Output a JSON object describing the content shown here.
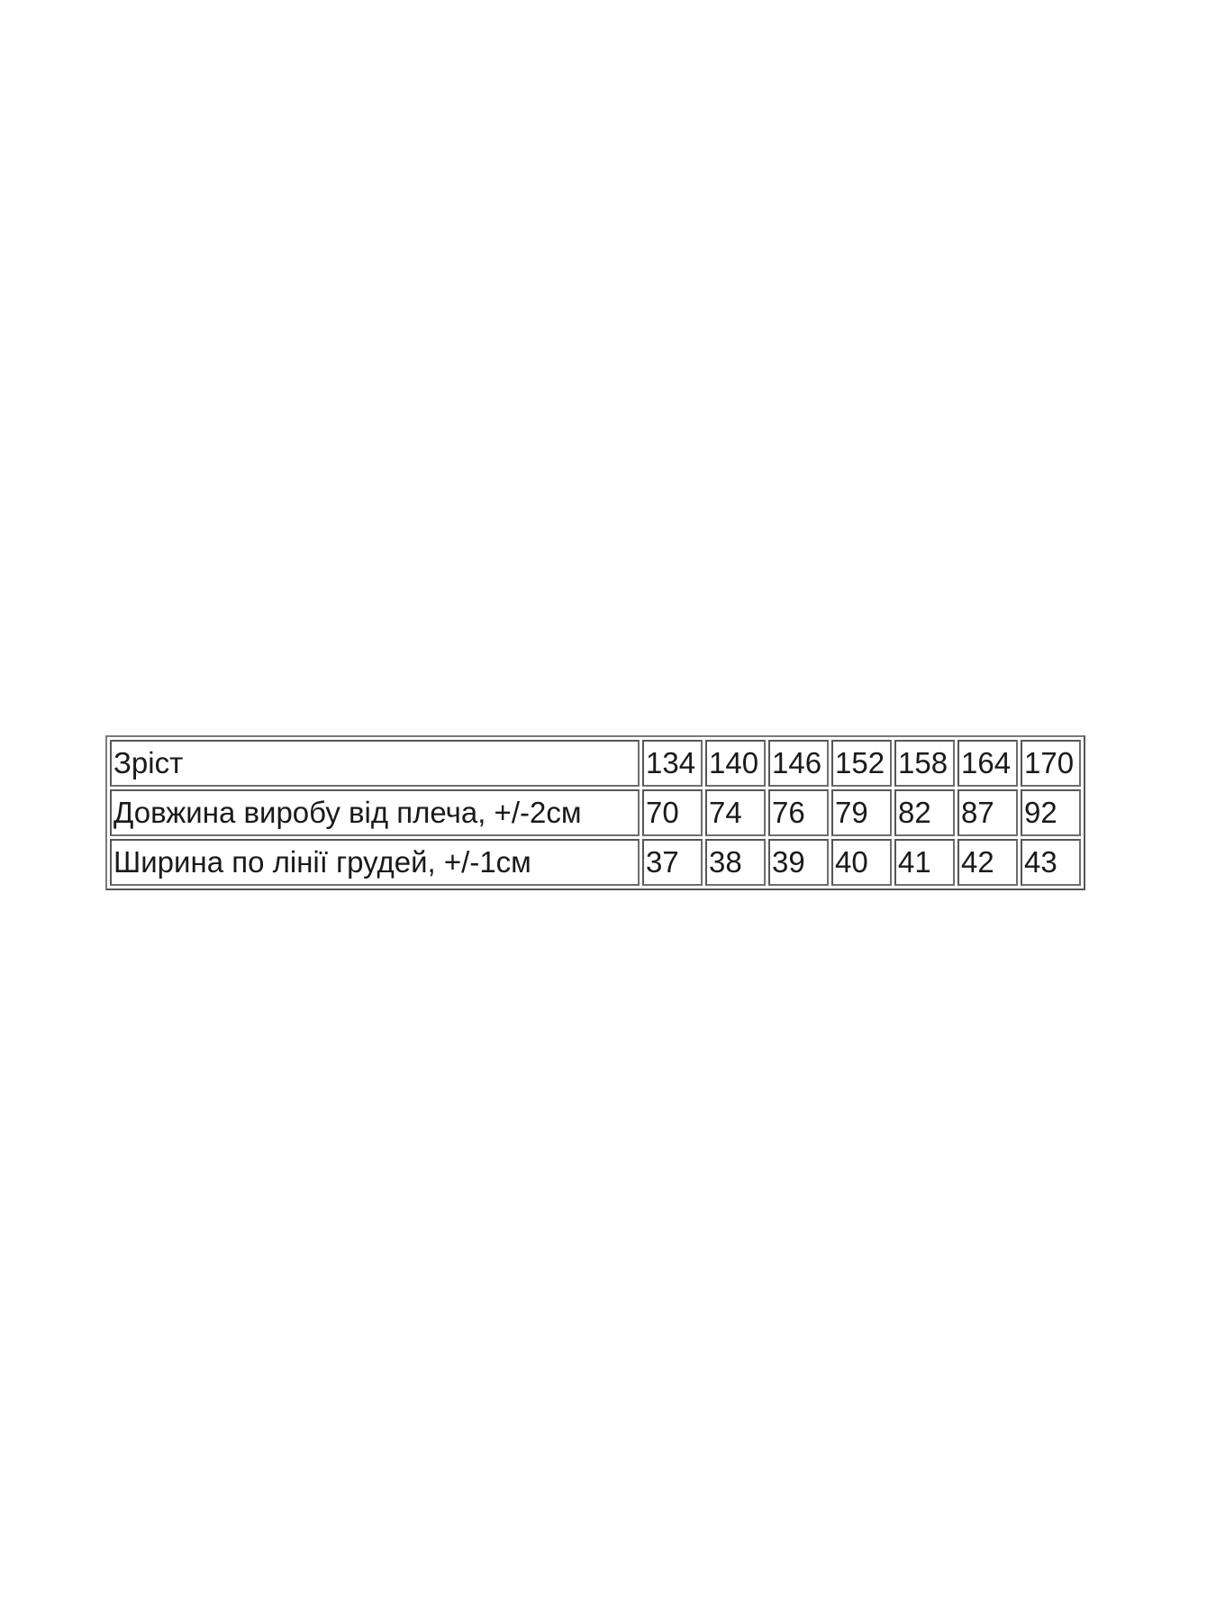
{
  "size_table": {
    "rows": [
      {
        "label": "Зріст",
        "values": [
          "134",
          "140",
          "146",
          "152",
          "158",
          "164",
          "170"
        ]
      },
      {
        "label": "Довжина виробу від плеча, +/-2см",
        "values": [
          "70",
          "74",
          "76",
          "79",
          "82",
          "87",
          "92"
        ]
      },
      {
        "label": "Ширина по лінії грудей, +/-1см",
        "values": [
          "37",
          "38",
          "39",
          "40",
          "41",
          "42",
          "43"
        ]
      }
    ]
  }
}
